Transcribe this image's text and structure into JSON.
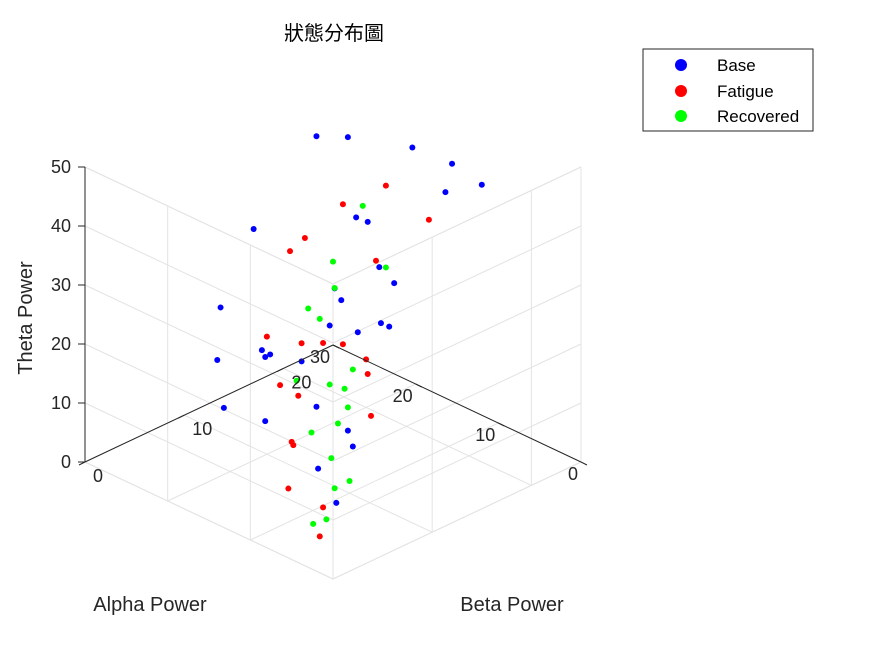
{
  "chart_data": {
    "type": "scatter3d",
    "title": "狀態分布圖",
    "xlabel": "Alpha Power",
    "ylabel": "Beta Power",
    "zlabel": "Theta Power",
    "xlim": [
      0,
      30
    ],
    "ylim": [
      0,
      25
    ],
    "zlim": [
      0,
      50
    ],
    "xticks": [
      "0",
      "10",
      "20",
      "30"
    ],
    "yticks": [
      "0",
      "10",
      "20"
    ],
    "zticks": [
      "0",
      "10",
      "20",
      "30",
      "40",
      "50"
    ],
    "grid": true,
    "legend_position": "top-right",
    "series": [
      {
        "name": "Base",
        "color": "#0000ff",
        "points": [
          [
            8,
            18,
            46
          ],
          [
            26,
            20,
            42
          ],
          [
            12,
            22,
            45
          ],
          [
            27,
            24,
            38
          ],
          [
            30,
            17,
            26
          ],
          [
            25,
            14,
            10
          ],
          [
            18,
            23,
            43
          ],
          [
            6,
            20,
            47
          ],
          [
            20,
            19,
            33
          ],
          [
            15,
            15,
            20
          ],
          [
            22,
            12,
            14
          ],
          [
            10,
            8,
            30
          ],
          [
            5,
            5,
            40
          ],
          [
            3,
            4,
            20
          ],
          [
            14,
            10,
            12
          ],
          [
            9,
            6,
            8
          ],
          [
            24,
            9,
            6
          ],
          [
            28,
            12,
            18
          ],
          [
            16,
            18,
            28
          ],
          [
            19,
            16,
            24
          ],
          [
            7,
            12,
            36
          ],
          [
            11,
            14,
            25
          ],
          [
            13,
            4,
            15
          ],
          [
            2,
            2,
            10
          ],
          [
            21,
            21,
            30
          ],
          [
            17,
            7,
            22
          ],
          [
            23,
            16,
            9
          ],
          [
            4,
            9,
            33
          ],
          [
            12,
            12,
            5
          ],
          [
            26,
            10,
            12
          ]
        ]
      },
      {
        "name": "Fatigue",
        "color": "#ff0000",
        "points": [
          [
            0,
            1,
            39
          ],
          [
            10,
            18,
            40
          ],
          [
            20,
            22,
            36
          ],
          [
            24,
            21,
            31
          ],
          [
            28,
            19,
            22
          ],
          [
            18,
            14,
            17
          ],
          [
            6,
            4,
            5
          ],
          [
            4,
            2,
            3
          ],
          [
            12,
            6,
            10
          ],
          [
            15,
            9,
            14
          ],
          [
            22,
            13,
            8
          ],
          [
            8,
            10,
            24
          ],
          [
            14,
            16,
            32
          ],
          [
            3,
            6,
            28
          ],
          [
            26,
            15,
            12
          ],
          [
            9,
            3,
            7
          ],
          [
            17,
            11,
            20
          ],
          [
            11,
            5,
            12
          ],
          [
            5,
            8,
            18
          ],
          [
            25,
            18,
            27
          ]
        ]
      },
      {
        "name": "Recovered",
        "color": "#00ff00",
        "points": [
          [
            12,
            13,
            45
          ],
          [
            8,
            12,
            38
          ],
          [
            3,
            3,
            22
          ],
          [
            2,
            1,
            8
          ],
          [
            6,
            7,
            26
          ],
          [
            10,
            8,
            20
          ],
          [
            5,
            4,
            14
          ],
          [
            15,
            10,
            28
          ],
          [
            9,
            9,
            16
          ],
          [
            4,
            5,
            10
          ],
          [
            13,
            11,
            32
          ],
          [
            7,
            6,
            6
          ],
          [
            16,
            12,
            24
          ],
          [
            11,
            7,
            12
          ],
          [
            18,
            15,
            30
          ],
          [
            14,
            8,
            18
          ],
          [
            1,
            2,
            30
          ],
          [
            6,
            3,
            3
          ]
        ]
      }
    ]
  }
}
